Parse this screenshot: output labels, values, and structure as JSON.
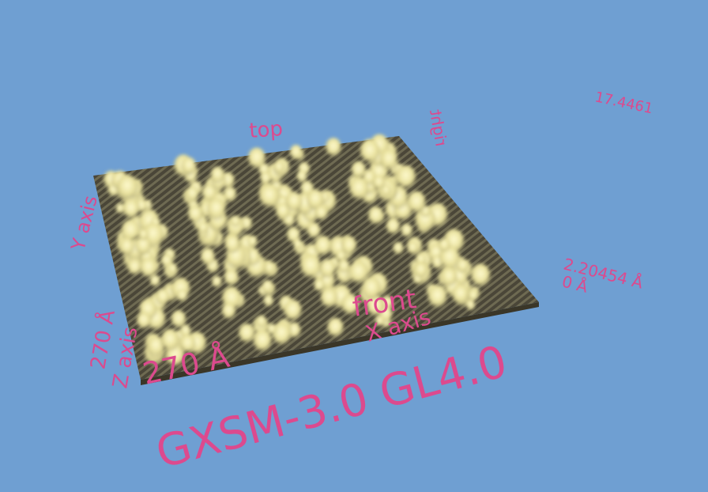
{
  "labels": {
    "top": "top",
    "right": "right",
    "y_axis": "Y axis",
    "z_axis": "Z axis",
    "z_range": "270 Å",
    "x_range": "270 Å",
    "front": "front",
    "x_axis": "X axis",
    "z_max": "2.20454 Å",
    "z_min": "0 Å",
    "far_value": "17.4461",
    "version": "GXSM-3.0 GL4.0"
  }
}
